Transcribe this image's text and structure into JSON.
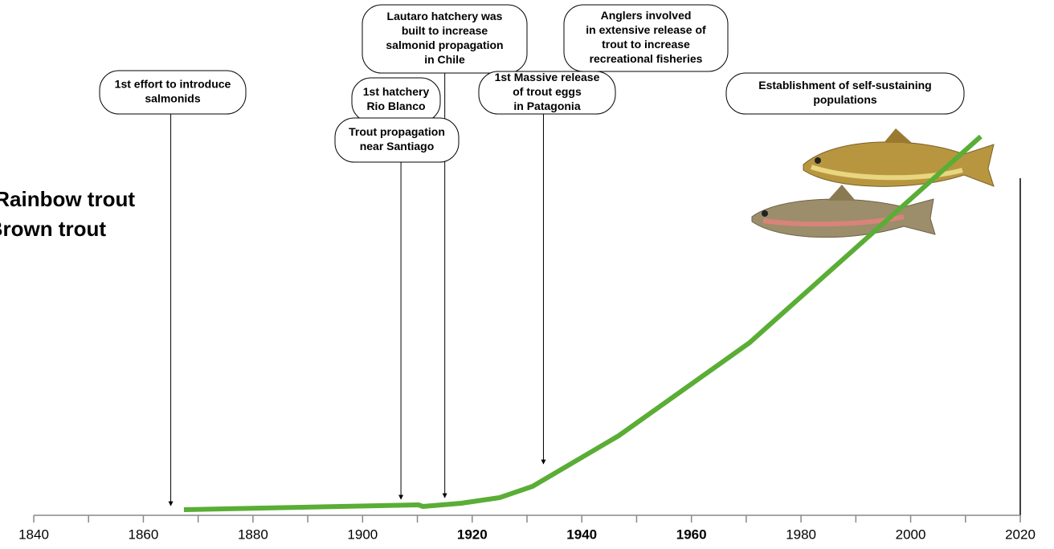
{
  "chart_data": {
    "type": "line",
    "series": [
      {
        "name": "Rainbow trout"
      },
      {
        "name": "Brown trout"
      }
    ],
    "line": {
      "color": "#5aad35",
      "x": [
        1867.4,
        1910.2,
        1911,
        1918,
        1925,
        1931,
        1946.7,
        1970.6,
        2012.8
      ],
      "values": [
        1.4,
        2.6,
        2.2,
        3,
        4.4,
        7.2,
        19.8,
        43,
        94.4
      ]
    },
    "xlim": [
      1840,
      2020
    ],
    "ylim": [
      0,
      100
    ],
    "xticks": [
      1840,
      1860,
      1880,
      1900,
      1920,
      1940,
      1960,
      1980,
      2000,
      2020
    ],
    "xminorticks": [
      1850,
      1870,
      1890,
      1910,
      1930,
      1950,
      1970,
      1990,
      2010
    ],
    "bold_xticks": [
      1920,
      1940,
      1960
    ],
    "annotations": [
      {
        "lines": [
          "1st effort to introduce",
          "salmonids"
        ],
        "year": 1865
      },
      {
        "lines": [
          "1st hatchery",
          "Rio Blanco"
        ]
      },
      {
        "lines": [
          "Trout propagation",
          "near Santiago"
        ],
        "year": 1907
      },
      {
        "lines": [
          "Lautaro hatchery was",
          "built to increase",
          "salmonid propagation",
          "in Chile"
        ],
        "year": 1915
      },
      {
        "lines": [
          "1st Massive release",
          "of trout eggs",
          "in Patagonia"
        ],
        "year": 1933
      },
      {
        "lines": [
          "Anglers involved",
          "in extensive release of",
          "trout to increase",
          "recreational fisheries"
        ]
      },
      {
        "lines": [
          "Establishment of self-sustaining",
          "populations"
        ]
      }
    ]
  }
}
